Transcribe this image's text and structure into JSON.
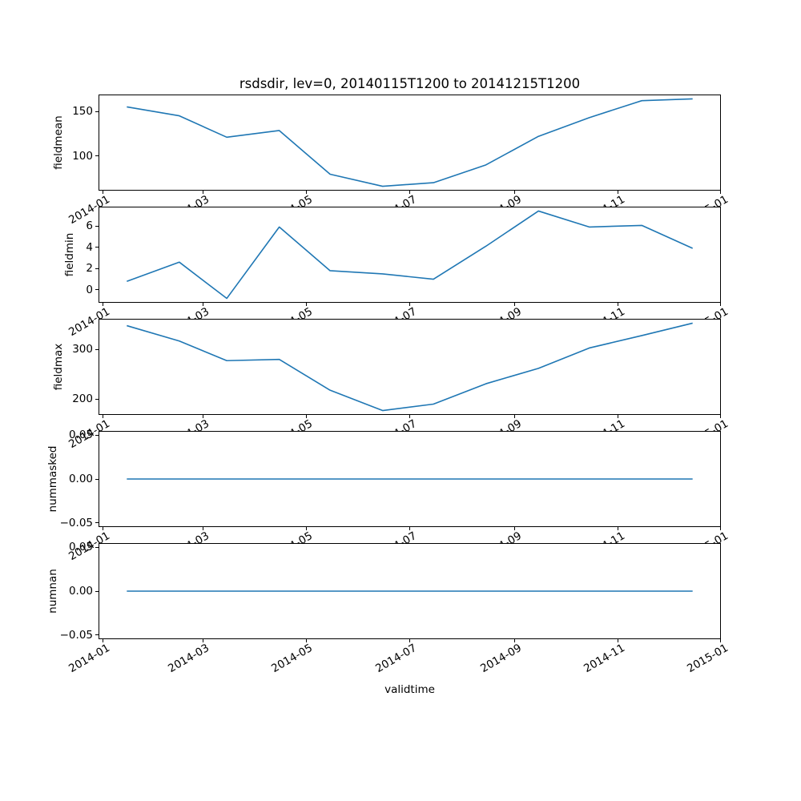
{
  "chart_data": {
    "type": "line",
    "title": "rsdsdir, lev=0, 20140115T1200 to 20141215T1200",
    "xlabel": "validtime",
    "grid": false,
    "legend": null,
    "line_color": "#1f77b4",
    "frame_color": "#000000",
    "x_dates": [
      "2014-01-15T12:00",
      "2014-02-15T12:00",
      "2014-03-15T12:00",
      "2014-04-15T12:00",
      "2014-05-15T12:00",
      "2014-06-15T12:00",
      "2014-07-15T12:00",
      "2014-08-15T12:00",
      "2014-09-15T12:00",
      "2014-10-15T12:00",
      "2014-11-15T12:00",
      "2014-12-15T12:00"
    ],
    "x_days": [
      14,
      45,
      73,
      104,
      134,
      165,
      195,
      226,
      257,
      287,
      318,
      348
    ],
    "xlim_days": [
      -2.7,
      364.7
    ],
    "x_ticks": [
      {
        "day": 0,
        "label": "2014-01"
      },
      {
        "day": 59,
        "label": "2014-03"
      },
      {
        "day": 120,
        "label": "2014-05"
      },
      {
        "day": 181,
        "label": "2014-07"
      },
      {
        "day": 243,
        "label": "2014-09"
      },
      {
        "day": 304,
        "label": "2014-11"
      },
      {
        "day": 365,
        "label": "2015-01"
      }
    ],
    "series": [
      {
        "name": "fieldmean",
        "values": [
          155,
          145,
          121,
          128.5,
          79.5,
          66,
          70,
          90,
          122,
          143,
          162,
          164
        ],
        "yticks": [
          {
            "v": 100,
            "label": "100"
          },
          {
            "v": 150,
            "label": "150"
          }
        ]
      },
      {
        "name": "fieldmin",
        "values": [
          0.8,
          2.6,
          -0.8,
          5.9,
          1.8,
          1.5,
          1.0,
          4.1,
          7.4,
          5.9,
          6.05,
          3.9
        ],
        "yticks": [
          {
            "v": 0,
            "label": "0"
          },
          {
            "v": 2,
            "label": "2"
          },
          {
            "v": 4,
            "label": "4"
          },
          {
            "v": 6,
            "label": "6"
          }
        ]
      },
      {
        "name": "fieldmax",
        "values": [
          348,
          317,
          277.5,
          280,
          218,
          177,
          190,
          231,
          262,
          303,
          328,
          353
        ],
        "yticks": [
          {
            "v": 200,
            "label": "200"
          },
          {
            "v": 300,
            "label": "300"
          }
        ]
      },
      {
        "name": "nummasked",
        "values": [
          0,
          0,
          0,
          0,
          0,
          0,
          0,
          0,
          0,
          0,
          0,
          0
        ],
        "ylim": [
          -0.055,
          0.055
        ],
        "yticks": [
          {
            "v": -0.05,
            "label": "−0.05"
          },
          {
            "v": 0,
            "label": "0.00"
          },
          {
            "v": 0.05,
            "label": "0.05"
          }
        ]
      },
      {
        "name": "numnan",
        "values": [
          0,
          0,
          0,
          0,
          0,
          0,
          0,
          0,
          0,
          0,
          0,
          0
        ],
        "ylim": [
          -0.055,
          0.055
        ],
        "yticks": [
          {
            "v": -0.05,
            "label": "−0.05"
          },
          {
            "v": 0,
            "label": "0.00"
          },
          {
            "v": 0.05,
            "label": "0.05"
          }
        ]
      }
    ]
  }
}
